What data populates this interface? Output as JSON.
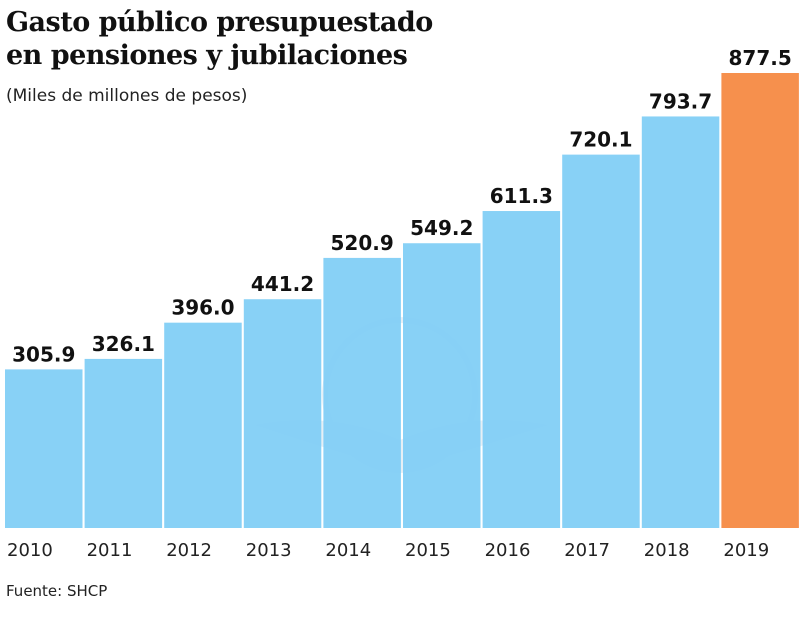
{
  "chart_data": {
    "type": "bar",
    "title": "Gasto público presupuestado en pensiones y jubilaciones",
    "subtitle": "(Miles de millones de pesos)",
    "source": "Fuente: SHCP",
    "xlabel": "",
    "ylabel": "",
    "ylim": [
      0,
      877.5
    ],
    "grid": false,
    "categories": [
      "2010",
      "2011",
      "2012",
      "2013",
      "2014",
      "2015",
      "2016",
      "2017",
      "2018",
      "2019"
    ],
    "values": [
      305.9,
      326.1,
      396.0,
      441.2,
      520.9,
      549.2,
      611.3,
      720.1,
      793.7,
      877.5
    ],
    "value_labels": [
      "305.9",
      "326.1",
      "396.0",
      "441.2",
      "520.9",
      "549.2",
      "611.3",
      "720.1",
      "793.7",
      "877.5"
    ],
    "colors": {
      "default": "#7fcdf5",
      "highlight": "#f5883f"
    },
    "highlight_category": "2019"
  }
}
